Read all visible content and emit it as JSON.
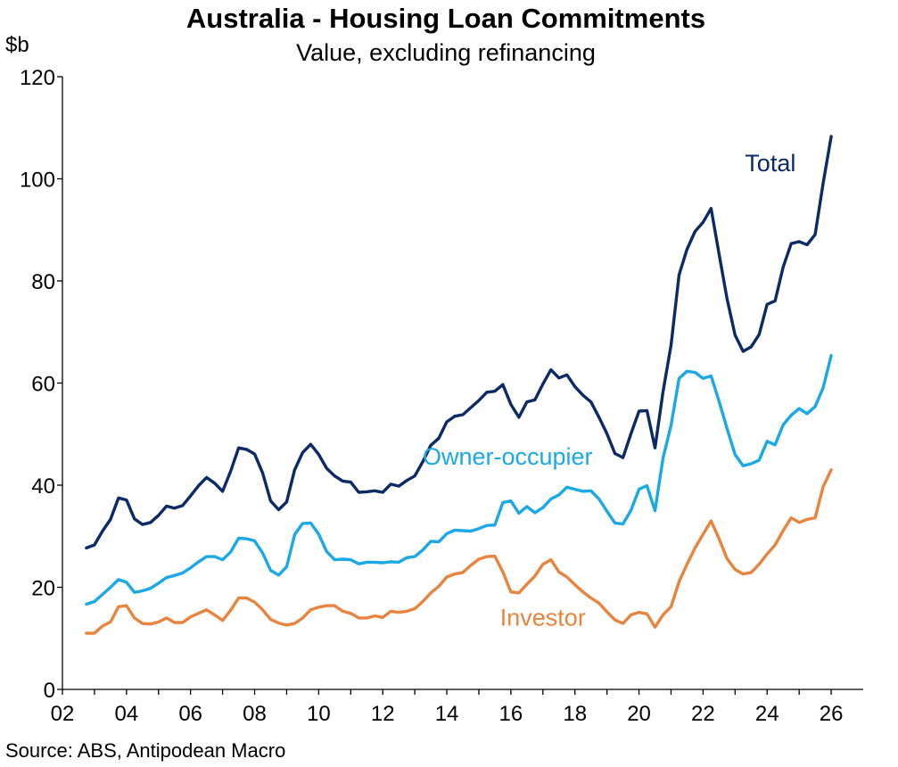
{
  "colors": {
    "total": "#0b2a66",
    "owner_occupier": "#1ba9e6",
    "investor": "#e8843e",
    "axis": "#000000"
  },
  "source": "Source: ABS, Antipodean Macro",
  "chart_data": {
    "type": "line",
    "title": "Australia - Housing Loan Commitments",
    "subtitle": "Value, excluding refinancing",
    "ylabel": "$b",
    "xlabel": "",
    "ylim": [
      0,
      120
    ],
    "xlim": [
      2002,
      2027
    ],
    "grid": false,
    "legend": "inline labels",
    "x_ticks": [
      "02",
      "04",
      "06",
      "08",
      "10",
      "12",
      "14",
      "16",
      "18",
      "20",
      "22",
      "24",
      "26"
    ],
    "y_ticks": [
      "0",
      "20",
      "40",
      "60",
      "80",
      "100",
      "120"
    ],
    "x": [
      2002.75,
      2003.0,
      2003.25,
      2003.5,
      2003.75,
      2004.0,
      2004.25,
      2004.5,
      2004.75,
      2005.0,
      2005.25,
      2005.5,
      2005.75,
      2006.0,
      2006.25,
      2006.5,
      2006.75,
      2007.0,
      2007.25,
      2007.5,
      2007.75,
      2008.0,
      2008.25,
      2008.5,
      2008.75,
      2009.0,
      2009.25,
      2009.5,
      2009.75,
      2010.0,
      2010.25,
      2010.5,
      2010.75,
      2011.0,
      2011.25,
      2011.5,
      2011.75,
      2012.0,
      2012.25,
      2012.5,
      2012.75,
      2013.0,
      2013.25,
      2013.5,
      2013.75,
      2014.0,
      2014.25,
      2014.5,
      2014.75,
      2015.0,
      2015.25,
      2015.5,
      2015.75,
      2016.0,
      2016.25,
      2016.5,
      2016.75,
      2017.0,
      2017.25,
      2017.5,
      2017.75,
      2018.0,
      2018.25,
      2018.5,
      2018.75,
      2019.0,
      2019.25,
      2019.5,
      2019.75,
      2020.0,
      2020.25,
      2020.5,
      2020.75,
      2021.0,
      2021.25,
      2021.5,
      2021.75,
      2022.0,
      2022.25,
      2022.5,
      2022.75,
      2023.0,
      2023.25,
      2023.5,
      2023.75,
      2024.0,
      2024.25,
      2024.5,
      2024.75,
      2025.0,
      2025.25,
      2025.5,
      2025.75,
      2026.0
    ],
    "series": [
      {
        "name": "Total",
        "key": "total",
        "label_anchor": [
          2024.1,
          101.5
        ],
        "values": [
          27.7,
          28.3,
          31,
          33.3,
          37.5,
          37.1,
          33.4,
          32.3,
          32.7,
          34.1,
          35.9,
          35.5,
          36,
          37.9,
          39.9,
          41.5,
          40.4,
          38.8,
          42.7,
          47.3,
          47,
          46.1,
          42.4,
          36.9,
          35.2,
          36.7,
          43,
          46.4,
          48,
          46,
          43.3,
          41.8,
          40.8,
          40.6,
          38.6,
          38.7,
          38.9,
          38.6,
          40.2,
          39.8,
          40.9,
          41.8,
          44.6,
          47.8,
          49.2,
          52.4,
          53.5,
          53.8,
          55.2,
          56.6,
          58.2,
          58.4,
          59.7,
          55.8,
          53.3,
          56.3,
          56.7,
          59.8,
          62.6,
          61,
          61.6,
          59.3,
          57.6,
          56.3,
          53.3,
          50.1,
          46.2,
          45.4,
          50.1,
          54.5,
          54.6,
          47.3,
          58.3,
          67.4,
          81.2,
          86.2,
          89.7,
          91.5,
          94.2,
          85.2,
          76.5,
          69.4,
          66.2,
          67.1,
          69.5,
          75.4,
          76.1,
          82.7,
          87.3,
          87.7,
          87.1,
          89.1,
          99.2,
          108.3
        ]
      },
      {
        "name": "Owner-occupier",
        "key": "owner_occupier",
        "label_anchor": [
          2015.9,
          44.0
        ],
        "values": [
          16.7,
          17.2,
          18.6,
          20,
          21.5,
          21,
          19,
          19.3,
          19.8,
          20.8,
          21.9,
          22.3,
          22.8,
          23.8,
          25,
          26,
          26,
          25.4,
          26.9,
          29.6,
          29.5,
          29.1,
          26.7,
          23.3,
          22.4,
          24,
          30.3,
          32.5,
          32.6,
          30.4,
          27,
          25.4,
          25.5,
          25.4,
          24.6,
          24.9,
          24.9,
          24.8,
          25,
          24.9,
          25.8,
          26,
          27.3,
          29,
          28.9,
          30.5,
          31.2,
          31.1,
          31,
          31.5,
          32.1,
          32.2,
          36.6,
          36.9,
          34.5,
          35.8,
          34.6,
          35.6,
          37.3,
          38.1,
          39.6,
          39.2,
          38.8,
          38.9,
          37.3,
          34.9,
          32.6,
          32.4,
          35.1,
          39.2,
          39.9,
          35,
          45.3,
          51.7,
          60.9,
          62.3,
          62.1,
          60.9,
          61.4,
          56.4,
          51.1,
          46,
          43.8,
          44.2,
          44.9,
          48.6,
          47.9,
          51.8,
          53.7,
          55,
          54,
          55.4,
          59.1,
          65.4
        ]
      },
      {
        "name": "Investor",
        "key": "investor",
        "label_anchor": [
          2017.0,
          12.5
        ],
        "values": [
          11,
          11,
          12.4,
          13.2,
          16.2,
          16.4,
          14,
          12.9,
          12.8,
          13.2,
          14,
          13.1,
          13.1,
          14.2,
          14.9,
          15.6,
          14.6,
          13.5,
          15.5,
          17.9,
          17.9,
          17.1,
          15.6,
          13.7,
          13,
          12.6,
          12.9,
          14,
          15.6,
          16.1,
          16.4,
          16.4,
          15.3,
          14.9,
          14,
          14,
          14.4,
          14.1,
          15.3,
          15.1,
          15.3,
          15.8,
          17.2,
          18.9,
          20.2,
          22,
          22.6,
          22.9,
          24.3,
          25.5,
          26,
          26.1,
          23,
          19.1,
          18.9,
          20.6,
          22.2,
          24.5,
          25.4,
          23,
          22,
          20.5,
          19.1,
          17.9,
          16.9,
          15.2,
          13.6,
          12.9,
          14.6,
          15.1,
          14.8,
          12.2,
          14.6,
          16.2,
          21.1,
          24.5,
          27.7,
          30.4,
          33,
          29.5,
          25.6,
          23.5,
          22.6,
          22.9,
          24.5,
          26.5,
          28.3,
          31.1,
          33.6,
          32.7,
          33.3,
          33.6,
          39.7,
          43
        ]
      }
    ]
  }
}
